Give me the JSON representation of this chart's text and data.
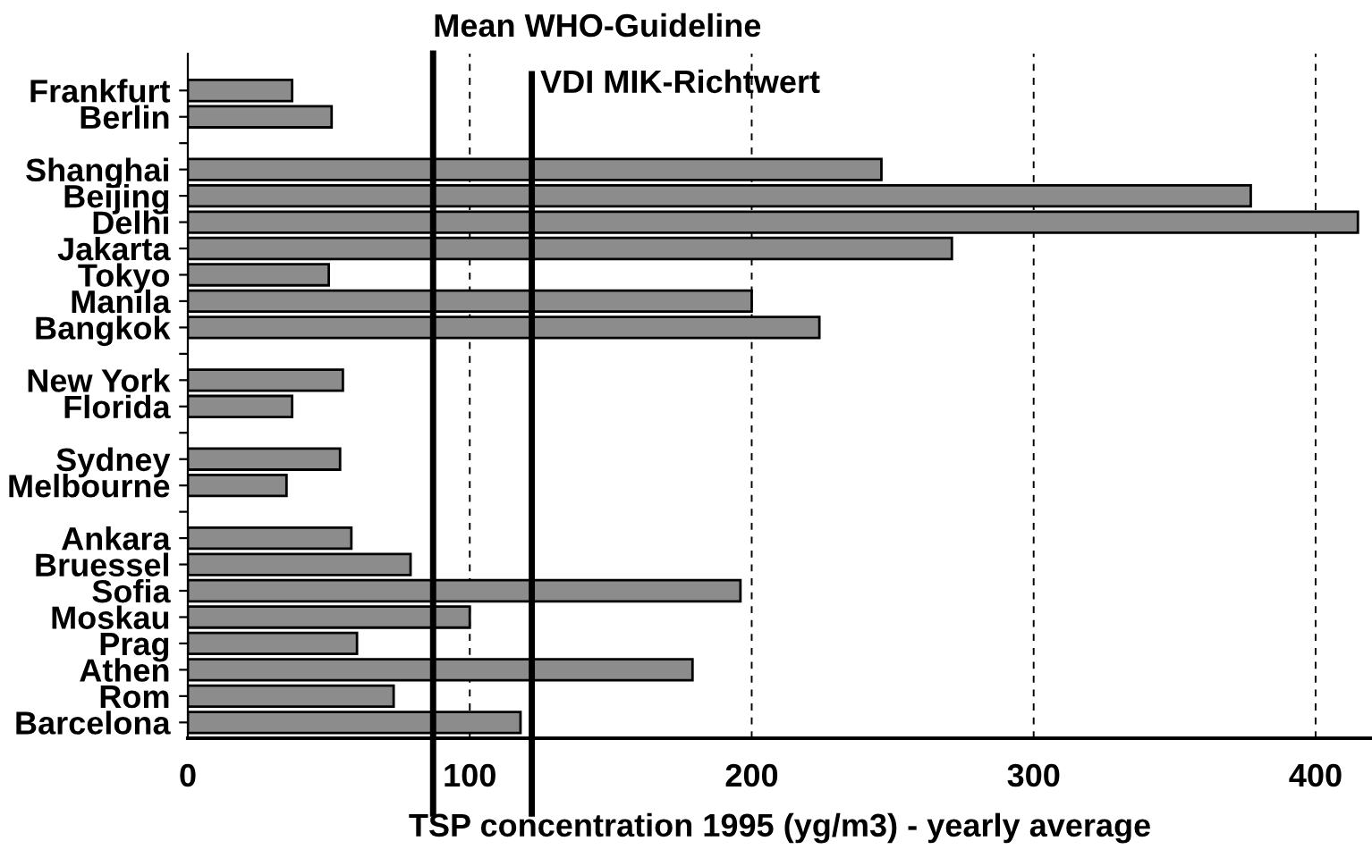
{
  "chart_data": {
    "type": "bar",
    "orientation": "horizontal",
    "xlabel": "TSP concentration 1995 (yg/m3) - yearly average",
    "categories": [
      "Frankfurt",
      "Berlin",
      null,
      "Shanghai",
      "Beijing",
      "Delhi",
      "Jakarta",
      "Tokyo",
      "Manila",
      "Bangkok",
      null,
      "New York",
      "Florida",
      null,
      "Sydney",
      "Melbourne",
      null,
      "Ankara",
      "Bruessel",
      "Sofia",
      "Moskau",
      "Prag",
      "Athen",
      "Rom",
      "Barcelona"
    ],
    "values": [
      37,
      51,
      null,
      246,
      377,
      415,
      271,
      50,
      200,
      224,
      null,
      55,
      37,
      null,
      54,
      35,
      null,
      58,
      79,
      196,
      100,
      60,
      179,
      73,
      118
    ],
    "color": "#8c8c8c",
    "xlim": [
      0,
      420
    ],
    "xticks": [
      0,
      100,
      200,
      300,
      400
    ],
    "grid": "x",
    "ref_lines": [
      {
        "axis": "x",
        "value": 87,
        "label": "Mean WHO-Guideline",
        "color": "#000000",
        "line_style": "solid"
      },
      {
        "axis": "x",
        "value": 122,
        "label": "VDI MIK-Richtwert",
        "color": "#000000",
        "line_style": "solid"
      }
    ]
  }
}
